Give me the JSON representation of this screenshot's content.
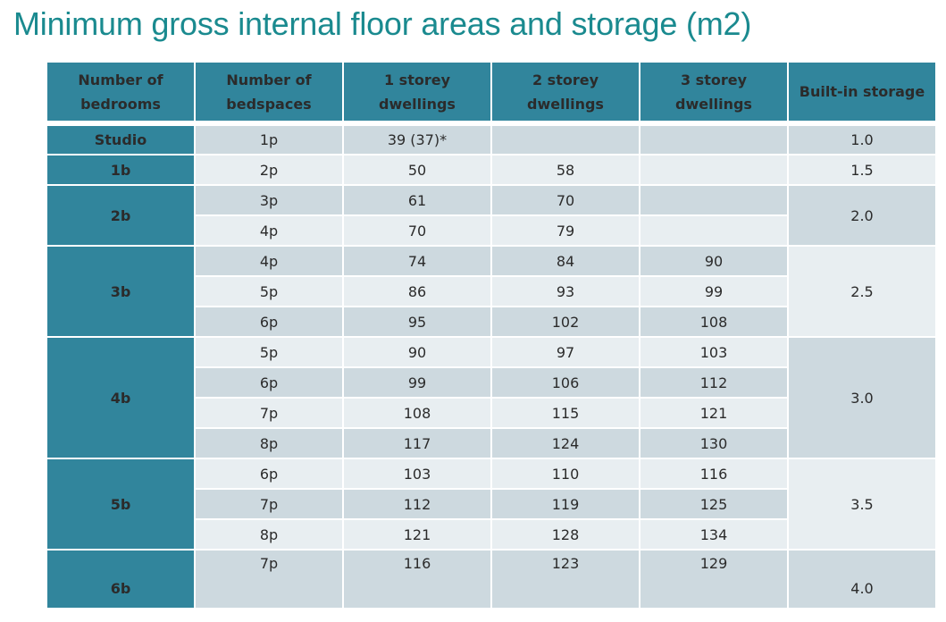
{
  "title": "Minimum gross internal floor areas and storage (m2)",
  "colors": {
    "title": "#1a8a8f",
    "header": "#31859c",
    "row_dark": "#cdd9df",
    "row_light": "#e8eef1"
  },
  "headers": [
    "Number of bedrooms",
    "Number of bedspaces",
    "1 storey dwellings",
    "2 storey dwellings",
    "3 storey dwellings",
    "Built-in storage"
  ],
  "groups": [
    {
      "bedrooms": "Studio",
      "storage": "1.0",
      "rows": [
        {
          "bedspaces": "1p",
          "s1": "39 (37)*",
          "s2": "",
          "s3": ""
        }
      ]
    },
    {
      "bedrooms": "1b",
      "storage": "1.5",
      "rows": [
        {
          "bedspaces": "2p",
          "s1": "50",
          "s2": "58",
          "s3": ""
        }
      ]
    },
    {
      "bedrooms": "2b",
      "storage": "2.0",
      "rows": [
        {
          "bedspaces": "3p",
          "s1": "61",
          "s2": "70",
          "s3": ""
        },
        {
          "bedspaces": "4p",
          "s1": "70",
          "s2": "79",
          "s3": ""
        }
      ]
    },
    {
      "bedrooms": "3b",
      "storage": "2.5",
      "rows": [
        {
          "bedspaces": "4p",
          "s1": "74",
          "s2": "84",
          "s3": "90"
        },
        {
          "bedspaces": "5p",
          "s1": "86",
          "s2": "93",
          "s3": "99"
        },
        {
          "bedspaces": "6p",
          "s1": "95",
          "s2": "102",
          "s3": "108"
        }
      ]
    },
    {
      "bedrooms": "4b",
      "storage": "3.0",
      "rows": [
        {
          "bedspaces": "5p",
          "s1": "90",
          "s2": "97",
          "s3": "103"
        },
        {
          "bedspaces": "6p",
          "s1": "99",
          "s2": "106",
          "s3": "112"
        },
        {
          "bedspaces": "7p",
          "s1": "108",
          "s2": "115",
          "s3": "121"
        },
        {
          "bedspaces": "8p",
          "s1": "117",
          "s2": "124",
          "s3": "130"
        }
      ]
    },
    {
      "bedrooms": "5b",
      "storage": "3.5",
      "rows": [
        {
          "bedspaces": "6p",
          "s1": "103",
          "s2": "110",
          "s3": "116"
        },
        {
          "bedspaces": "7p",
          "s1": "112",
          "s2": "119",
          "s3": "125"
        },
        {
          "bedspaces": "8p",
          "s1": "121",
          "s2": "128",
          "s3": "134"
        }
      ]
    },
    {
      "bedrooms": "6b",
      "storage": "4.0",
      "rows": [
        {
          "bedspaces": "7p",
          "s1": "116",
          "s2": "123",
          "s3": "129"
        }
      ]
    }
  ]
}
